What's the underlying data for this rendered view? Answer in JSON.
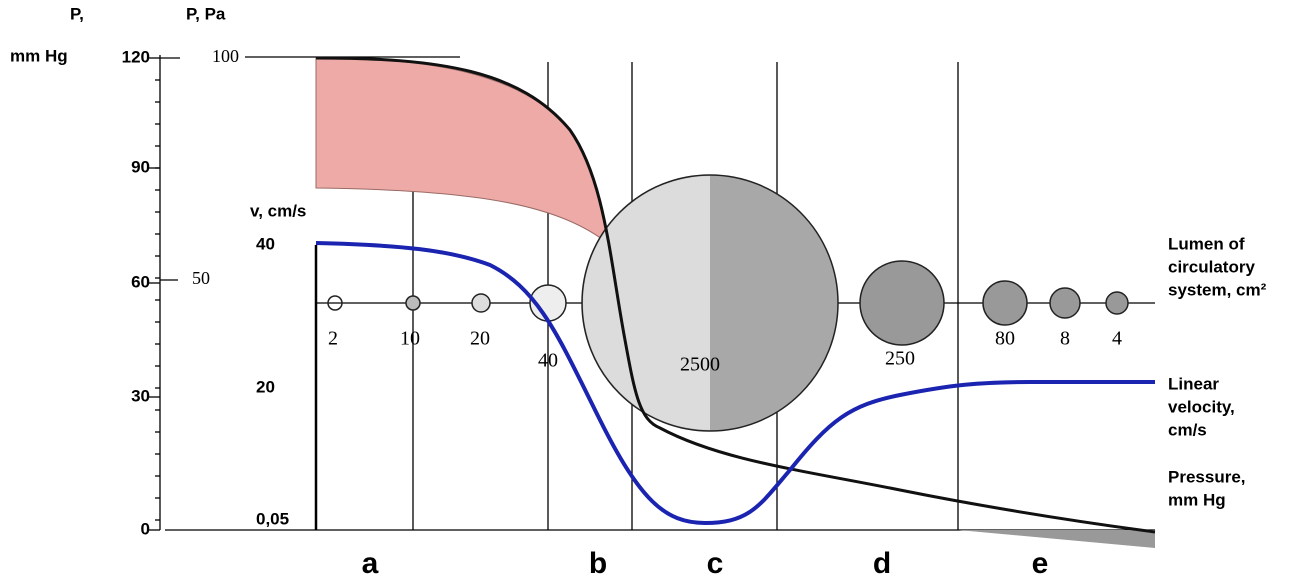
{
  "pressure_axis": {
    "title_lines": [
      "P,",
      "mm Hg"
    ],
    "ticks": [
      "120",
      "90",
      "60",
      "30",
      "0"
    ]
  },
  "pa_axis": {
    "title": "P, Pa",
    "ticks": [
      "100",
      "50"
    ]
  },
  "velocity_axis": {
    "title": "v, cm/s",
    "ticks": [
      "40",
      "20",
      "0,05"
    ]
  },
  "vessels": [
    {
      "label": "2"
    },
    {
      "label": "10"
    },
    {
      "label": "20"
    },
    {
      "label": "40"
    },
    {
      "label": "2500"
    },
    {
      "label": "250"
    },
    {
      "label": "80"
    },
    {
      "label": "8"
    },
    {
      "label": "4"
    }
  ],
  "sections": [
    "a",
    "b",
    "c",
    "d",
    "e"
  ],
  "legend": [
    {
      "lines": [
        "Lumen of",
        "circulatory",
        "system, cm²"
      ]
    },
    {
      "lines": [
        "Linear",
        "velocity,",
        "cm/s"
      ]
    },
    {
      "lines": [
        "Pressure,",
        "mm Hg"
      ]
    }
  ]
}
